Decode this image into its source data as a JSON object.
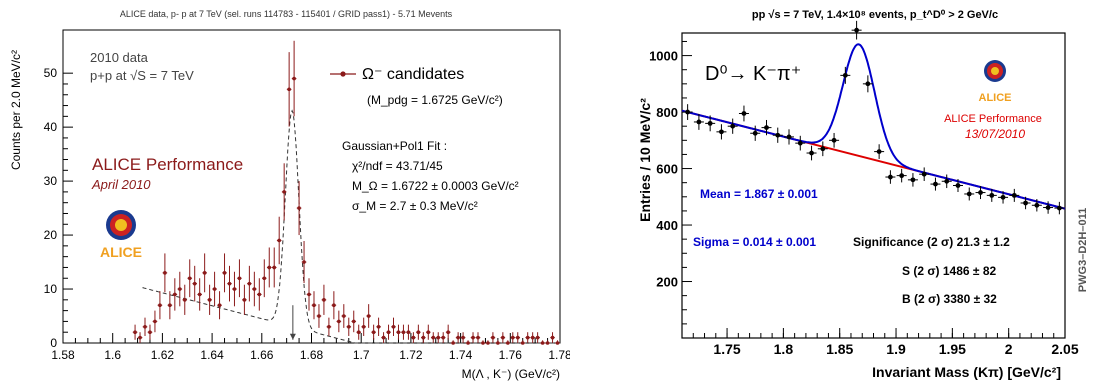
{
  "chart_data": [
    {
      "type": "scatter",
      "title": "ALICE data, p- p at 7 TeV (sel. runs 114783 - 115401 / GRID pass1) - 5.71 Mevents",
      "xlabel": "M(Λ , K⁻) (GeV/c²)",
      "ylabel": "Counts per 2.0 MeV/c²",
      "xlim": [
        1.58,
        1.78
      ],
      "ylim": [
        0,
        58
      ],
      "x_ticks": [
        "1.58",
        "1.6",
        "1.62",
        "1.64",
        "1.66",
        "1.68",
        "1.7",
        "1.72",
        "1.74",
        "1.76",
        "1.78"
      ],
      "y_ticks": [
        "0",
        "10",
        "20",
        "30",
        "40",
        "50"
      ],
      "colors": {
        "data": "#8b1a1a",
        "performance": "#8b1a1a",
        "fit": "#333333"
      },
      "legend": {
        "label": "Ω⁻ candidates",
        "pdg": "(M_pdg = 1.6725 GeV/c²)",
        "placement": "top-right"
      },
      "fit_text": {
        "line1": "Gaussian+Pol1 Fit :",
        "line2": "χ²/ndf = 43.71/45",
        "line3": "M_Ω = 1.6722 ± 0.0003 GeV/c²",
        "line4": "σ_M = 2.7 ± 0.3 MeV/c²"
      },
      "info_text": {
        "line1": "2010 data",
        "line2": "p+p at √S = 7 TeV"
      },
      "performance": {
        "label": "ALICE Performance",
        "date": "April 2010"
      },
      "logo_text": "ALICE",
      "series": [
        {
          "x": [
            1.609,
            1.611,
            1.613,
            1.615,
            1.617,
            1.619,
            1.621,
            1.623,
            1.625,
            1.627,
            1.629,
            1.631,
            1.633,
            1.635,
            1.637,
            1.639,
            1.641,
            1.643,
            1.645,
            1.647,
            1.649,
            1.651,
            1.653,
            1.655,
            1.657,
            1.659,
            1.661,
            1.663,
            1.665,
            1.667,
            1.669,
            1.671,
            1.673,
            1.675,
            1.677,
            1.679,
            1.681,
            1.683,
            1.685,
            1.687,
            1.689,
            1.691,
            1.693,
            1.695,
            1.697,
            1.699,
            1.701,
            1.703,
            1.705,
            1.707,
            1.709,
            1.711,
            1.713,
            1.715,
            1.717,
            1.719,
            1.721,
            1.723,
            1.725,
            1.727,
            1.729,
            1.731,
            1.733,
            1.735,
            1.737,
            1.739,
            1.741,
            1.743,
            1.745,
            1.747,
            1.749,
            1.751,
            1.753,
            1.755,
            1.757,
            1.759,
            1.761,
            1.763,
            1.765,
            1.767,
            1.769,
            1.771,
            1.773,
            1.775,
            1.777,
            1.779
          ],
          "y": [
            2,
            1,
            3,
            2,
            4,
            7,
            13,
            7,
            9,
            10,
            8,
            12,
            11,
            9,
            13,
            8,
            10,
            7,
            13,
            11,
            10,
            12,
            8,
            11,
            10,
            9,
            12,
            14,
            14,
            19,
            28,
            47,
            49,
            25,
            15,
            9,
            7,
            5,
            8,
            3,
            7,
            4,
            5,
            3,
            4,
            2,
            3,
            5,
            2,
            3,
            1,
            2,
            3,
            2,
            2,
            2,
            1,
            2,
            1,
            2,
            1,
            1,
            1,
            2,
            0,
            1,
            1,
            0,
            1,
            1,
            0,
            0,
            1,
            0,
            1,
            0,
            1,
            1,
            0,
            1,
            1,
            1,
            0,
            0,
            1,
            0
          ],
          "errors": [
            1.4,
            1.0,
            1.7,
            1.4,
            2.0,
            2.6,
            3.6,
            2.6,
            3.0,
            3.2,
            2.8,
            3.5,
            3.3,
            3.0,
            3.6,
            2.8,
            3.2,
            2.6,
            3.6,
            3.3,
            3.2,
            3.5,
            2.8,
            3.3,
            3.2,
            3.0,
            3.5,
            3.7,
            3.7,
            4.4,
            5.3,
            6.9,
            7.0,
            5.0,
            3.9,
            3.0,
            2.6,
            2.2,
            2.8,
            1.7,
            2.6,
            2.0,
            2.2,
            1.7,
            2.0,
            1.4,
            1.7,
            2.2,
            1.4,
            1.7,
            1.0,
            1.4,
            1.7,
            1.4,
            1.4,
            1.4,
            1.0,
            1.4,
            1.0,
            1.4,
            1.0,
            1.0,
            1.0,
            1.4,
            0.5,
            1.0,
            1.0,
            0.5,
            1.0,
            1.0,
            0.5,
            0.5,
            1.0,
            0.5,
            1.0,
            0.5,
            1.0,
            1.0,
            0.5,
            1.0,
            1.0,
            1.0,
            0.5,
            0.5,
            1.0,
            0.5
          ]
        }
      ],
      "fit_curve": {
        "mean": 1.6722,
        "sigma": 0.0027,
        "amplitude": 40,
        "bkg_a": 10.5,
        "bkg_b": -120,
        "x_start": 1.612,
        "x_end": 1.778
      },
      "arrow_x": 1.6725
    },
    {
      "type": "scatter",
      "title": "pp √s = 7 TeV, 1.4×10⁸ events, p_t^D⁰ > 2 GeV/c",
      "xlabel": "Invariant Mass (Kπ) [GeV/c²]",
      "ylabel": "Entries / 10 MeV/c²",
      "xlim": [
        1.71,
        2.05
      ],
      "ylim": [
        0,
        1080
      ],
      "x_ticks": [
        "1.75",
        "1.8",
        "1.85",
        "1.9",
        "1.95",
        "2",
        "2.05"
      ],
      "y_ticks": [
        "200",
        "400",
        "600",
        "800",
        "1000"
      ],
      "colors": {
        "data": "#000000",
        "fit": "#0000cc",
        "background": "#dd0000",
        "performance": "#dd0000"
      },
      "decay_label": "D⁰→ K⁻π⁺",
      "stats": {
        "mean": "Mean = 1.867 ± 0.001",
        "sigma": "Sigma = 0.014 ± 0.001",
        "significance": "Significance (2 σ) 21.3 ± 1.2",
        "signal": "S (2 σ) 1486 ± 82",
        "background": "B (2 σ) 3380 ± 32"
      },
      "performance": {
        "label": "ALICE Performance",
        "date": "13/07/2010"
      },
      "logo_text": "ALICE",
      "side_label": "PWG3–D2H–011",
      "series": [
        {
          "x": [
            1.715,
            1.725,
            1.735,
            1.745,
            1.755,
            1.765,
            1.775,
            1.785,
            1.795,
            1.805,
            1.815,
            1.825,
            1.835,
            1.845,
            1.855,
            1.865,
            1.875,
            1.885,
            1.895,
            1.905,
            1.915,
            1.925,
            1.935,
            1.945,
            1.955,
            1.965,
            1.975,
            1.985,
            1.995,
            2.005,
            2.015,
            2.025,
            2.035,
            2.045
          ],
          "y": [
            800,
            765,
            760,
            730,
            750,
            795,
            725,
            745,
            718,
            712,
            690,
            655,
            670,
            700,
            930,
            1090,
            900,
            660,
            570,
            575,
            560,
            580,
            545,
            555,
            540,
            510,
            515,
            505,
            498,
            505,
            478,
            470,
            462,
            460
          ],
          "errors": [
            28,
            28,
            28,
            27,
            27,
            28,
            27,
            27,
            27,
            27,
            26,
            26,
            26,
            26,
            30,
            33,
            30,
            26,
            24,
            24,
            24,
            24,
            23,
            24,
            23,
            23,
            23,
            23,
            22,
            23,
            22,
            22,
            22,
            22
          ]
        }
      ],
      "fit_curve": {
        "mean": 1.867,
        "sigma": 0.014,
        "amplitude": 395,
        "bkg_start": [
          1.71,
          805
        ],
        "bkg_end": [
          2.05,
          458
        ]
      }
    }
  ]
}
